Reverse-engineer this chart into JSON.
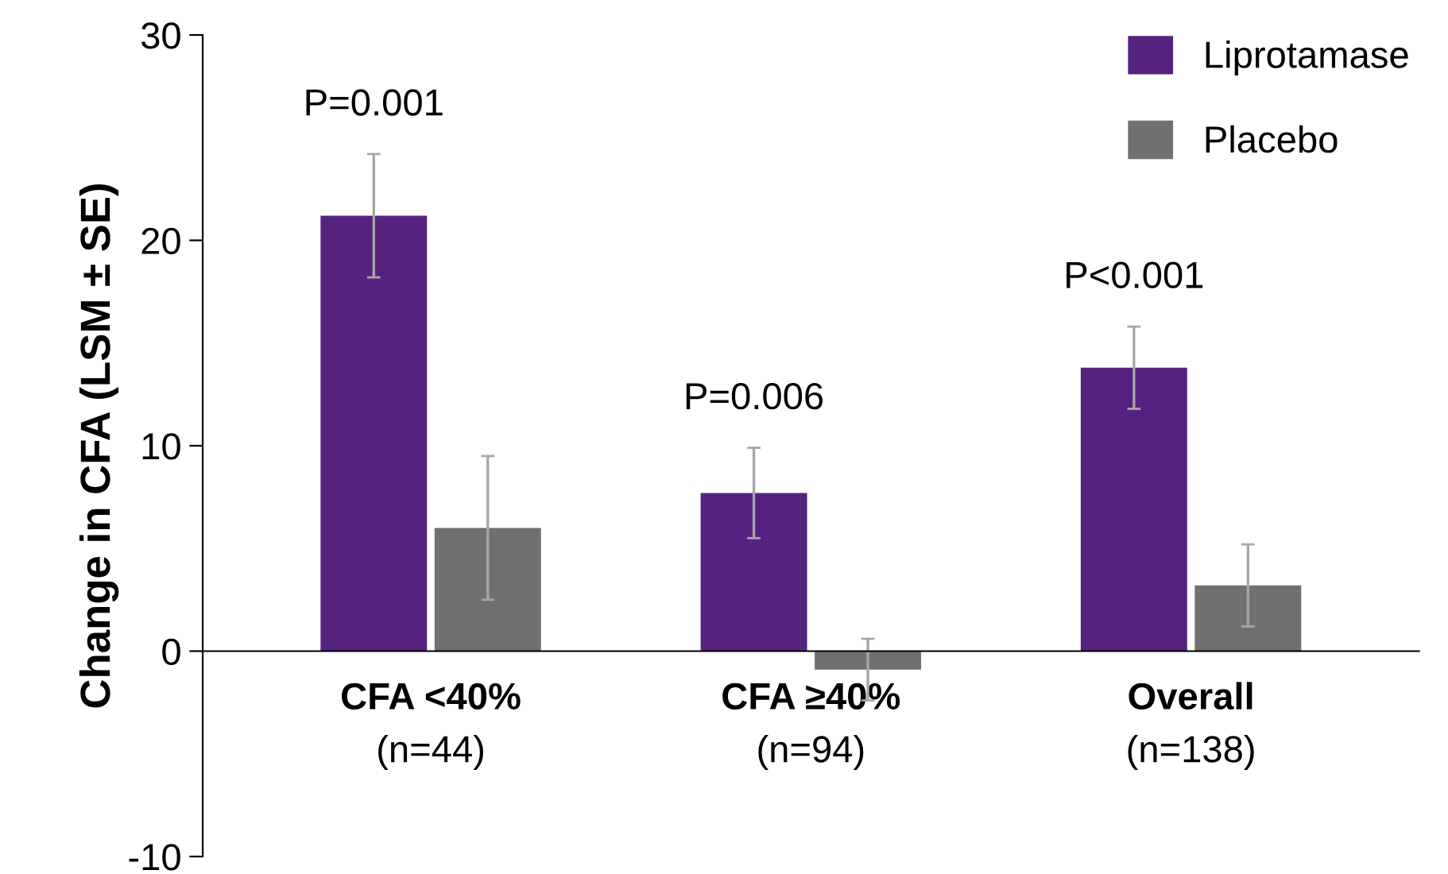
{
  "chart_data": {
    "type": "bar",
    "ylabel": "Change in CFA (LSM ± SE)",
    "categories": [
      "CFA <40%",
      "CFA ≥40%",
      "Overall"
    ],
    "series": [
      {
        "name": "Liprotamase",
        "color": "#55237f",
        "values": [
          21.2,
          7.7,
          13.8
        ],
        "errors": [
          3.0,
          2.2,
          2.0
        ]
      },
      {
        "name": "Placebo",
        "color": "#707070",
        "values": [
          6.0,
          -0.9,
          3.2
        ],
        "errors": [
          3.5,
          1.5,
          2.0
        ]
      }
    ],
    "ylim": [
      -10,
      30
    ],
    "yticks": [
      -10,
      0,
      10,
      20,
      30
    ],
    "grid": false,
    "legend": "top right",
    "annotations": [
      "P=0.001",
      "P=0.006",
      "P<0.001",
      "(n=44)",
      "(n=94)",
      "(n=138)"
    ]
  }
}
